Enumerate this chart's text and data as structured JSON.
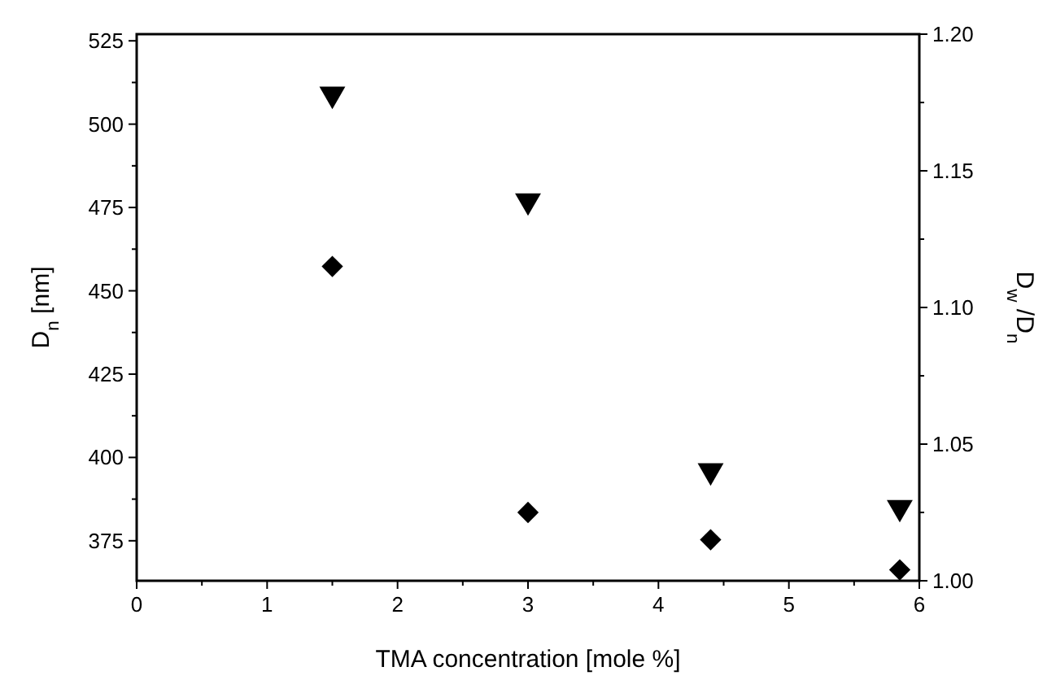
{
  "chart_data": {
    "type": "scatter",
    "xlabel": "TMA concentration [mole %]",
    "ylabel": "D$_{n}$ [nm]",
    "y2label": "D$_{w}$ /D$_{n}$",
    "x": [
      1.5,
      3.0,
      4.4,
      5.85
    ],
    "xlim": [
      0,
      6
    ],
    "xticks": [
      0,
      {
        "value": 0.5,
        "label": null
      },
      1,
      {
        "value": 1.5,
        "label": null
      },
      2,
      {
        "value": 2.5,
        "label": null
      },
      3,
      {
        "value": 3.5,
        "label": null
      },
      4,
      {
        "value": 4.5,
        "label": null
      },
      5,
      {
        "value": 5.5,
        "label": null
      },
      6
    ],
    "ylim": [
      363,
      527
    ],
    "yticks": [
      375,
      {
        "value": 387.5,
        "label": null
      },
      400,
      {
        "value": 412.5,
        "label": null
      },
      425,
      {
        "value": 437.5,
        "label": null
      },
      450,
      {
        "value": 462.5,
        "label": null
      },
      475,
      {
        "value": 487.5,
        "label": null
      },
      500,
      {
        "value": 512.5,
        "label": null
      },
      525
    ],
    "y2lim": [
      1.0,
      1.2
    ],
    "y2ticks": [
      {
        "value": 1.0,
        "label": "1.00"
      },
      {
        "value": 1.025,
        "label": null
      },
      {
        "value": 1.05,
        "label": "1.05"
      },
      {
        "value": 1.075,
        "label": null
      },
      {
        "value": 1.1,
        "label": "1.10"
      },
      {
        "value": 1.125,
        "label": null
      },
      {
        "value": 1.15,
        "label": "1.15"
      },
      {
        "value": 1.175,
        "label": null
      },
      {
        "value": 1.2,
        "label": "1.20"
      }
    ],
    "grid": false,
    "series": [
      {
        "color": "#000000",
        "marker": "triangle",
        "values": [
          509,
          477,
          396,
          385
        ]
      },
      {
        "color": "#000000",
        "marker": "diamond",
        "axis": "y2",
        "values": [
          1.115,
          1.025,
          1.015,
          1.004
        ]
      }
    ]
  }
}
